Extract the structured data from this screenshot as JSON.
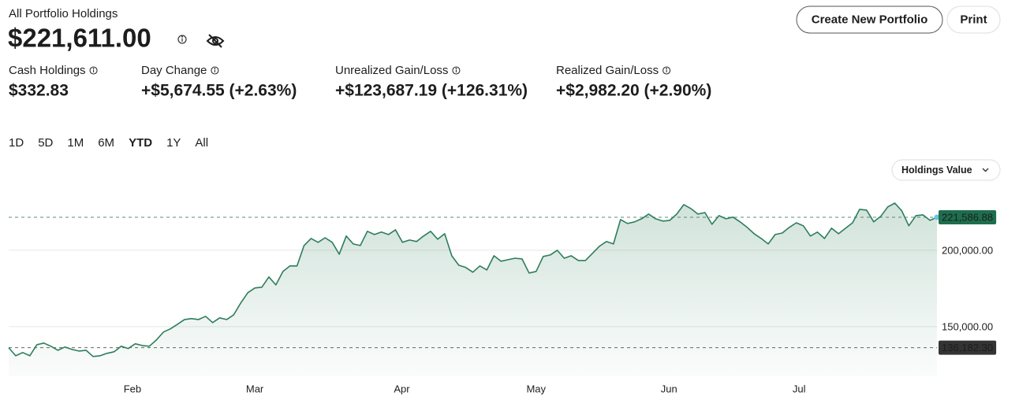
{
  "header": {
    "title": "All Portfolio Holdings",
    "total": "$221,611.00"
  },
  "actions": [
    "Create New Portfolio",
    "Print"
  ],
  "stats": [
    {
      "label": "Cash Holdings",
      "value": "$332.83",
      "color": "#1d1d1d"
    },
    {
      "label": "Day Change",
      "value": "+$5,674.55 (+2.63%)",
      "color": "#1a7f5a"
    },
    {
      "label": "Unrealized Gain/Loss",
      "value": "+$123,687.19 (+126.31%)",
      "color": "#1a7f5a"
    },
    {
      "label": "Realized Gain/Loss",
      "value": "+$2,982.20 (+2.90%)",
      "color": "#1a7f5a"
    }
  ],
  "ranges": {
    "options": [
      "1D",
      "5D",
      "1M",
      "6M",
      "YTD",
      "1Y",
      "All"
    ],
    "selected_index": 4
  },
  "chart_data": {
    "type": "line",
    "series": [
      {
        "name": "Holdings Value",
        "color": "#2e7d5b",
        "values": [
          136182.3,
          130900,
          133000,
          130900,
          138100,
          139200,
          137100,
          134500,
          136600,
          135000,
          134000,
          134500,
          130400,
          130900,
          132500,
          133500,
          137100,
          135600,
          138700,
          137600,
          137100,
          141200,
          146400,
          148500,
          151500,
          154600,
          155200,
          154600,
          156700,
          152600,
          155700,
          154600,
          157700,
          165500,
          172200,
          175300,
          175800,
          182500,
          177300,
          186100,
          189700,
          189700,
          203100,
          207700,
          205200,
          208200,
          205200,
          197400,
          209300,
          204100,
          203100,
          212400,
          210300,
          211900,
          210300,
          213400,
          205200,
          206700,
          205700,
          209300,
          212400,
          207200,
          210800,
          196400,
          190200,
          188700,
          185600,
          189700,
          187100,
          196400,
          192800,
          193800,
          194800,
          194300,
          185100,
          186100,
          195900,
          196900,
          200000,
          194800,
          196400,
          193300,
          193300,
          197900,
          202600,
          205700,
          204100,
          220100,
          217500,
          218600,
          220600,
          223700,
          220600,
          219100,
          219600,
          223700,
          229900,
          227300,
          223700,
          224700,
          217000,
          222700,
          220600,
          221700,
          218600,
          215000,
          210800,
          207700,
          204100,
          210300,
          211300,
          215000,
          218000,
          216000,
          209300,
          211900,
          207700,
          214400,
          210800,
          214400,
          218000,
          226800,
          226300,
          218600,
          222200,
          228400,
          230900,
          225800,
          216000,
          222700,
          223200,
          219600,
          221586.88
        ]
      }
    ],
    "xlim": [
      0,
      132
    ],
    "xticks": [
      {
        "value": 17.6,
        "label": "Feb"
      },
      {
        "value": 35,
        "label": "Mar"
      },
      {
        "value": 55.9,
        "label": "Apr"
      },
      {
        "value": 75,
        "label": "May"
      },
      {
        "value": 93.9,
        "label": "Jun"
      },
      {
        "value": 112.4,
        "label": "Jul"
      }
    ],
    "ylim": [
      120000,
      235000
    ],
    "yticks": [
      {
        "value": 150000,
        "label": "150,000.00"
      },
      {
        "value": 200000,
        "label": "200,000.00"
      }
    ],
    "grid": true,
    "reference_lines": [
      {
        "value": 221586.88,
        "label": "221,586.88",
        "color": "#1e6e4e"
      },
      {
        "value": 136182.3,
        "label": "136,182.30",
        "color": "#333333"
      }
    ]
  }
}
